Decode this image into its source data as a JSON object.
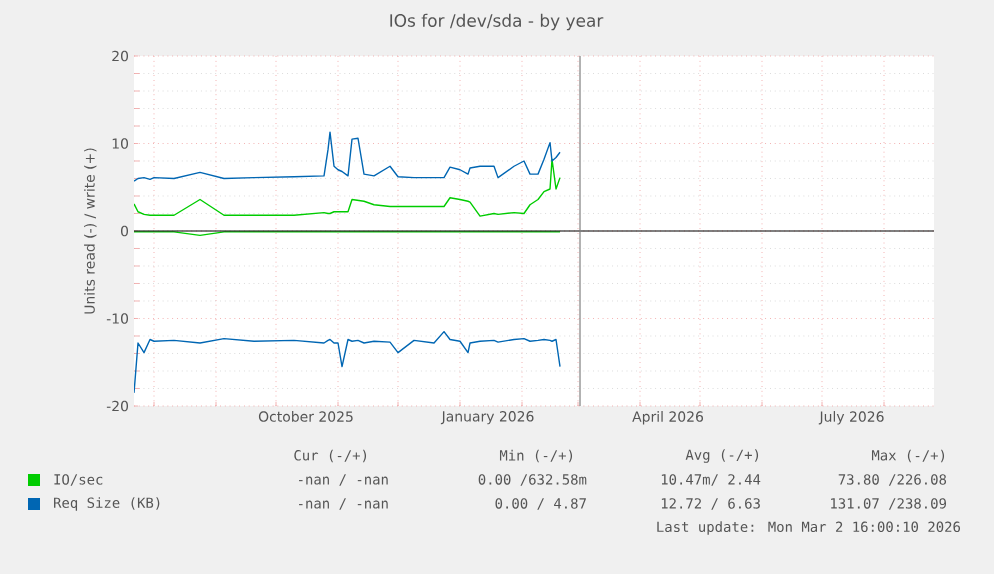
{
  "chart_data": {
    "type": "line",
    "title": "IOs for /dev/sda - by year",
    "ylabel": "Units read (-) / write (+)",
    "x": [
      "2025-07-22",
      "2025-07-24",
      "2025-07-27",
      "2025-07-30",
      "2025-08-01",
      "2025-08-11",
      "2025-08-24",
      "2025-09-05",
      "2025-09-20",
      "2025-10-10",
      "2025-10-25",
      "2025-10-27",
      "2025-10-28",
      "2025-10-30",
      "2025-11-01",
      "2025-11-03",
      "2025-11-06",
      "2025-11-08",
      "2025-11-11",
      "2025-11-14",
      "2025-11-19",
      "2025-11-27",
      "2025-12-01",
      "2025-12-09",
      "2025-12-19",
      "2025-12-24",
      "2025-12-27",
      "2026-01-01",
      "2026-01-05",
      "2026-01-06",
      "2026-01-11",
      "2026-01-18",
      "2026-01-20",
      "2026-01-28",
      "2026-02-02",
      "2026-02-05",
      "2026-02-09",
      "2026-02-12",
      "2026-02-15",
      "2026-02-16",
      "2026-02-18",
      "2026-02-20"
    ],
    "series": [
      {
        "name": "IO/sec",
        "color": "#00cc00",
        "values": [
          3.1,
          2.2,
          1.9,
          1.8,
          1.8,
          1.8,
          3.6,
          1.8,
          1.8,
          1.8,
          2.1,
          2.0,
          2.0,
          2.2,
          2.2,
          2.2,
          2.2,
          3.6,
          3.5,
          3.4,
          3.0,
          2.8,
          2.8,
          2.8,
          2.8,
          2.8,
          3.8,
          3.6,
          3.4,
          3.3,
          1.7,
          2.0,
          1.9,
          2.1,
          2.0,
          3.0,
          3.6,
          4.5,
          4.8,
          8.2,
          4.8,
          6.1
        ]
      },
      {
        "color": "#00cc00",
        "values": [
          -0.1,
          -0.1,
          -0.1,
          -0.1,
          -0.1,
          -0.1,
          -0.5,
          -0.1,
          -0.1,
          -0.1,
          -0.1,
          -0.1,
          -0.1,
          -0.1,
          -0.1,
          -0.1,
          -0.1,
          -0.1,
          -0.1,
          -0.1,
          -0.1,
          -0.1,
          -0.1,
          -0.1,
          -0.1,
          -0.1,
          -0.1,
          -0.1,
          -0.1,
          -0.1,
          -0.1,
          -0.1,
          -0.1,
          -0.1,
          -0.1,
          -0.1,
          -0.1,
          -0.1,
          -0.1,
          -0.1,
          -0.1,
          -0.1
        ]
      },
      {
        "name": "Req Size (KB)",
        "color": "#0066b3",
        "values": [
          5.7,
          6.0,
          6.1,
          5.9,
          6.1,
          6.0,
          6.7,
          6.0,
          6.1,
          6.2,
          6.3,
          9.3,
          11.3,
          7.4,
          7.0,
          6.8,
          6.3,
          10.5,
          10.6,
          6.5,
          6.3,
          7.4,
          6.2,
          6.1,
          6.1,
          6.1,
          7.3,
          7.0,
          6.5,
          7.2,
          7.4,
          7.4,
          6.1,
          7.4,
          8.0,
          6.5,
          6.5,
          8.2,
          10.1,
          8.0,
          8.4,
          9.0
        ]
      },
      {
        "color": "#0066b3",
        "values": [
          -18.5,
          -12.8,
          -13.9,
          -12.4,
          -12.6,
          -12.5,
          -12.8,
          -12.3,
          -12.6,
          -12.5,
          -12.8,
          -12.5,
          -12.4,
          -12.8,
          -12.8,
          -15.5,
          -12.4,
          -12.6,
          -12.5,
          -12.8,
          -12.6,
          -12.7,
          -13.9,
          -12.5,
          -12.8,
          -11.5,
          -12.4,
          -12.6,
          -13.9,
          -12.8,
          -12.6,
          -12.5,
          -12.7,
          -12.4,
          -12.3,
          -12.6,
          -12.5,
          -12.4,
          -12.5,
          -12.6,
          -12.4,
          -15.5
        ]
      }
    ],
    "xlim": [
      "2025-07-22",
      "2026-08-26"
    ],
    "xticks": [
      {
        "value": "2025-08-01",
        "label": null
      },
      {
        "value": "2025-09-01",
        "label": null
      },
      {
        "value": "2025-10-01",
        "label": null
      },
      {
        "value": "2025-11-01",
        "label": null
      },
      {
        "value": "2025-12-01",
        "label": null
      },
      {
        "value": "2026-01-01",
        "label": null
      },
      {
        "value": "2026-02-01",
        "label": null
      },
      {
        "value": "2026-03-01",
        "label": null
      },
      {
        "value": "2026-04-01",
        "label": null
      },
      {
        "value": "2026-05-01",
        "label": null
      },
      {
        "value": "2026-06-01",
        "label": null
      },
      {
        "value": "2026-07-01",
        "label": null
      },
      {
        "value": "2026-08-01",
        "label": null
      },
      {
        "value": "2025-10-16",
        "label": "October 2025"
      },
      {
        "value": "2026-01-15",
        "label": "January 2026"
      },
      {
        "value": "2026-04-15",
        "label": "April 2026"
      },
      {
        "value": "2026-07-16",
        "label": "July 2026"
      }
    ],
    "ylim": [
      -20,
      20
    ],
    "yticks": [
      -20,
      -10,
      0,
      10,
      20
    ],
    "grid": true,
    "legend": "bottom",
    "ref_lines": [
      {
        "axis": "y",
        "value": 0,
        "color": "#000000"
      },
      {
        "axis": "x",
        "value": "2026-03-02",
        "color": "#808080"
      }
    ],
    "annotations": [
      "Cur (-/+)",
      "Min (-/+)",
      "Avg (-/+)",
      "Max (-/+)",
      "-nan / -nan",
      "0.00 /632.58m",
      "10.47m/ 2.44",
      "73.80 /226.08",
      "-nan / -nan",
      "0.00 / 4.87",
      "12.72 / 6.63",
      "131.07 /238.09",
      "Last update: Mon Mar  2 16:00:10 2026"
    ]
  }
}
